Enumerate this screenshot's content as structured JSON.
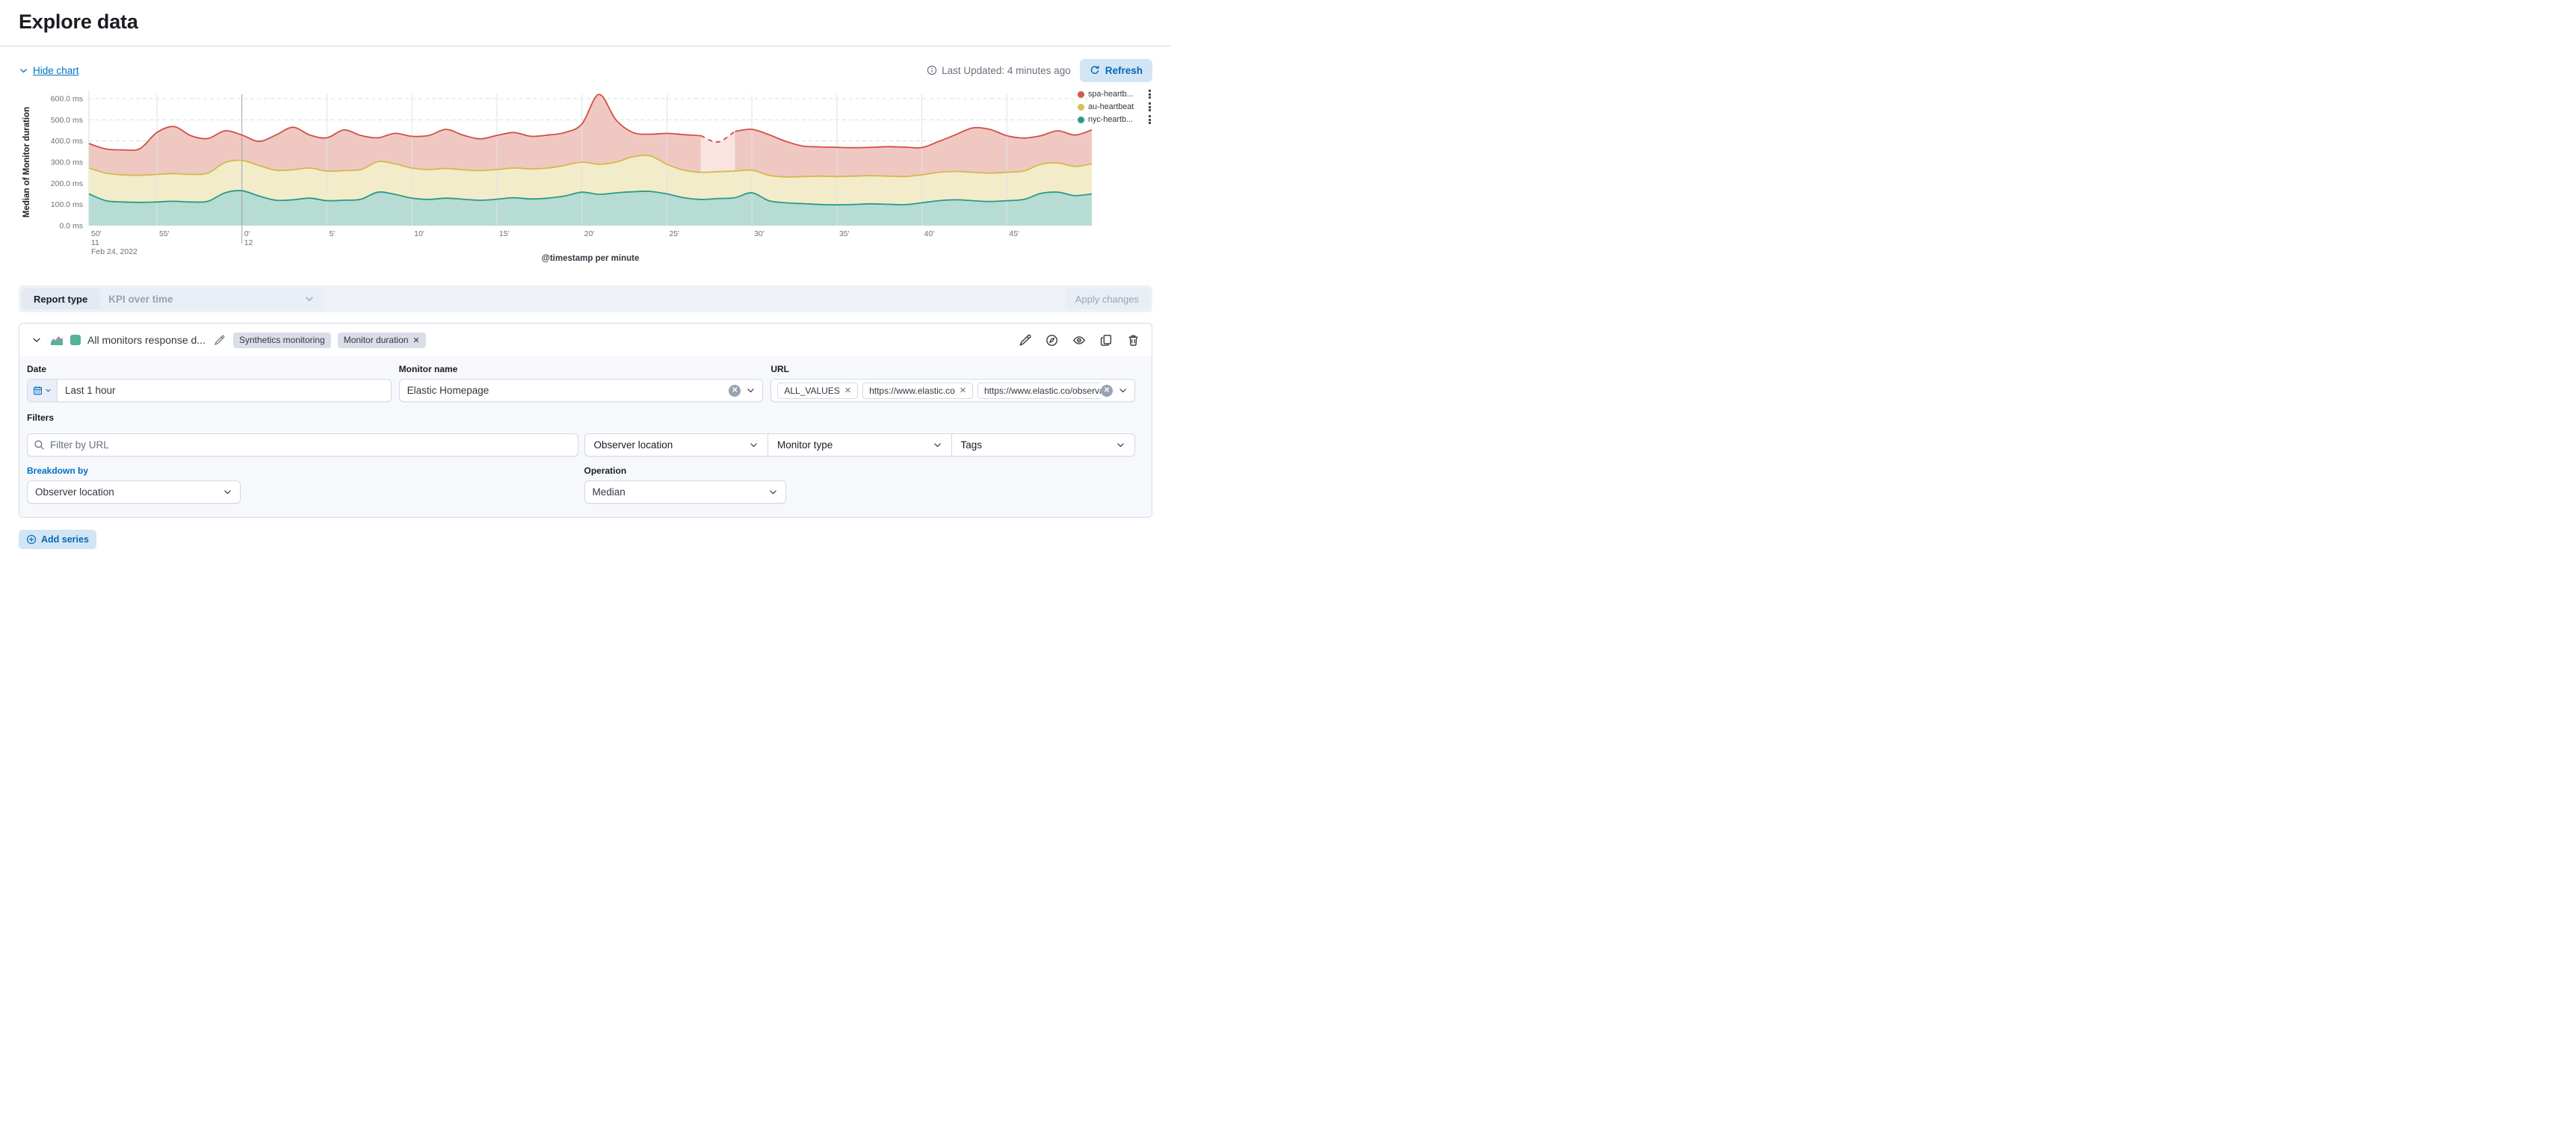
{
  "page": {
    "title": "Explore data"
  },
  "controls": {
    "hide_chart": "Hide chart",
    "last_updated": "Last Updated: 4 minutes ago",
    "refresh_label": "Refresh"
  },
  "chart_data": {
    "type": "area",
    "title": "",
    "ylabel": "Median of Monitor duration",
    "xlabel": "@timestamp per minute",
    "ylim": [
      0,
      600
    ],
    "y_ticks": [
      "0.0 ms",
      "100.0 ms",
      "200.0 ms",
      "300.0 ms",
      "400.0 ms",
      "500.0 ms",
      "600.0 ms"
    ],
    "x_start": "11:51",
    "x_end": "12:50",
    "x_date": "Feb 24, 2022",
    "grid": true,
    "legend_position": "right",
    "x_ticks": [
      {
        "label": "50'",
        "i": 0,
        "edge": true,
        "sub": "11",
        "sub2": "Feb 24, 2022"
      },
      {
        "label": "55'",
        "i": 4
      },
      {
        "label": "0'",
        "i": 9,
        "sub": "12",
        "emphasis": true
      },
      {
        "label": "5'",
        "i": 14
      },
      {
        "label": "10'",
        "i": 19
      },
      {
        "label": "15'",
        "i": 24
      },
      {
        "label": "20'",
        "i": 29
      },
      {
        "label": "25'",
        "i": 34
      },
      {
        "label": "30'",
        "i": 39
      },
      {
        "label": "35'",
        "i": 44
      },
      {
        "label": "40'",
        "i": 49
      },
      {
        "label": "45'",
        "i": 54
      }
    ],
    "anomaly": {
      "series": "spa-heartb...",
      "from": 36,
      "to": 38,
      "style": "dashed"
    },
    "series": [
      {
        "name": "spa-heartb...",
        "stroke": "#cf5146",
        "fill": "#f0c8c2",
        "anomaly_fill": "#f9e4e1",
        "values": [
          388,
          362,
          358,
          364,
          440,
          468,
          425,
          412,
          448,
          428,
          398,
          428,
          465,
          428,
          415,
          452,
          426,
          415,
          436,
          422,
          426,
          455,
          428,
          410,
          426,
          440,
          422,
          428,
          440,
          480,
          620,
          500,
          440,
          432,
          436,
          430,
          425,
          395,
          445,
          455,
          430,
          398,
          376,
          372,
          370,
          368,
          370,
          373,
          371,
          369,
          398,
          430,
          462,
          455,
          425,
          414,
          425,
          448,
          428,
          452
        ]
      },
      {
        "name": "au-heartbeat",
        "stroke": "#d2ba4c",
        "fill": "#f2ecca",
        "values": [
          272,
          248,
          240,
          238,
          242,
          246,
          242,
          248,
          298,
          308,
          284,
          262,
          264,
          272,
          258,
          260,
          265,
          302,
          292,
          272,
          265,
          270,
          264,
          260,
          265,
          272,
          268,
          272,
          285,
          300,
          290,
          300,
          325,
          330,
          290,
          262,
          252,
          255,
          258,
          262,
          238,
          230,
          232,
          234,
          232,
          234,
          236,
          234,
          232,
          240,
          252,
          256,
          252,
          248,
          252,
          258,
          290,
          296,
          280,
          292
        ]
      },
      {
        "name": "nyc-heartb...",
        "stroke": "#2b9b87",
        "fill": "#b7dcd3",
        "values": [
          150,
          118,
          112,
          110,
          112,
          115,
          112,
          115,
          155,
          165,
          140,
          120,
          122,
          130,
          118,
          120,
          125,
          158,
          148,
          130,
          124,
          130,
          125,
          120,
          125,
          132,
          126,
          130,
          140,
          158,
          148,
          155,
          160,
          162,
          150,
          132,
          124,
          128,
          132,
          155,
          118,
          108,
          104,
          100,
          98,
          100,
          103,
          101,
          99,
          108,
          118,
          122,
          118,
          114,
          118,
          124,
          152,
          158,
          142,
          150
        ]
      }
    ]
  },
  "report_bar": {
    "label": "Report type",
    "value": "KPI over time",
    "apply_label": "Apply changes"
  },
  "series_panel": {
    "title": "All monitors response d...",
    "badges": {
      "context": "Synthetics monitoring",
      "metric": "Monitor duration"
    },
    "date": {
      "label": "Date",
      "value": "Last 1 hour"
    },
    "monitor_name": {
      "label": "Monitor name",
      "value": "Elastic Homepage"
    },
    "url": {
      "label": "URL",
      "tokens": [
        "ALL_VALUES",
        "https://www.elastic.co",
        "https://www.elastic.co/observability"
      ]
    },
    "filters": {
      "label": "Filters",
      "placeholder": "Filter by URL",
      "selects": [
        "Observer location",
        "Monitor type",
        "Tags"
      ]
    },
    "breakdown": {
      "label": "Breakdown by",
      "value": "Observer location"
    },
    "operation": {
      "label": "Operation",
      "value": "Median"
    }
  },
  "add_series_label": "Add series",
  "colors": {
    "accent_blue": "#0071c2",
    "light_primary_bg": "#d3e5f5",
    "panel_border": "#d3dae6",
    "form_bg": "#f7f8fc",
    "swatch_green": "#54b399"
  }
}
